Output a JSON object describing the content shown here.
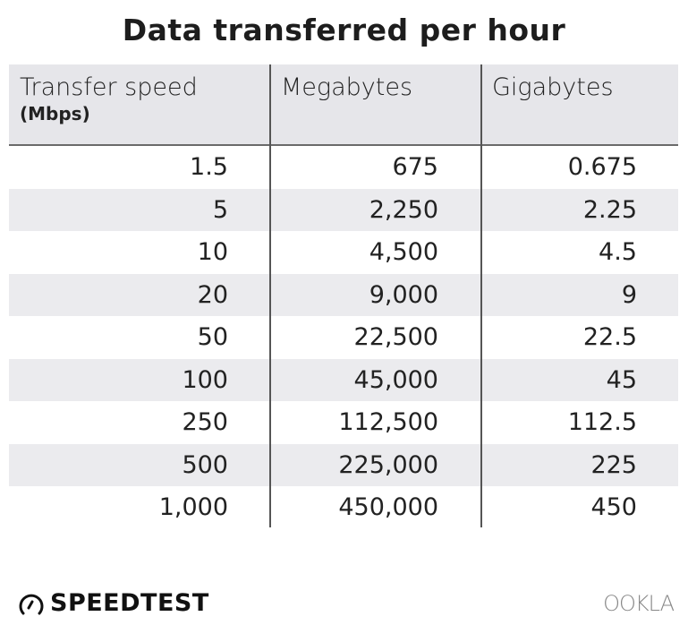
{
  "chart_data": {
    "type": "table",
    "title": "Data transferred per hour",
    "columns": [
      {
        "label": "Transfer speed",
        "sublabel": "(Mbps)"
      },
      {
        "label": "Megabytes"
      },
      {
        "label": "Gigabytes"
      }
    ],
    "rows": [
      [
        "1.5",
        "675",
        "0.675"
      ],
      [
        "5",
        "2,250",
        "2.25"
      ],
      [
        "10",
        "4,500",
        "4.5"
      ],
      [
        "20",
        "9,000",
        "9"
      ],
      [
        "50",
        "22,500",
        "22.5"
      ],
      [
        "100",
        "45,000",
        "45"
      ],
      [
        "250",
        "112,500",
        "112.5"
      ],
      [
        "500",
        "225,000",
        "225"
      ],
      [
        "1,000",
        "450,000",
        "450"
      ]
    ],
    "colors": {
      "header_bg": "#e6e6ea",
      "stripe_bg": "#ebebee",
      "divider": "#555555"
    }
  },
  "footer": {
    "brand": "SPEEDTEST",
    "brand_icon": "speedometer-icon",
    "partner": "OOKLA"
  }
}
